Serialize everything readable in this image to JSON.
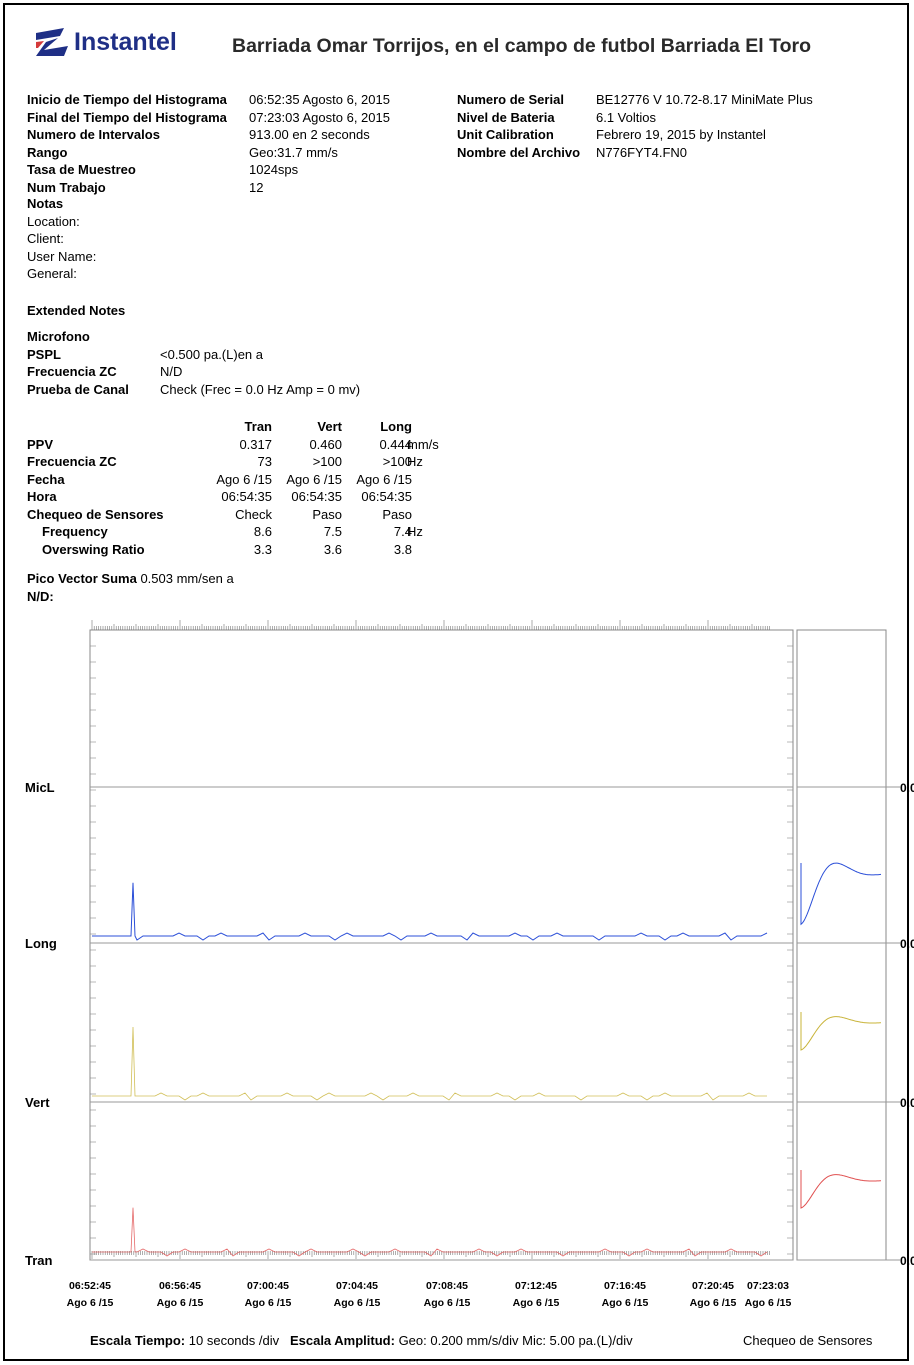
{
  "header": {
    "logo_text": "Instantel",
    "title": "Barriada Omar Torrijos, en el campo de futbol Barriada El Toro"
  },
  "info_left": [
    {
      "label": "Inicio de Tiempo del Histograma",
      "value": "06:52:35 Agosto 6, 2015"
    },
    {
      "label": "Final del Tiempo del Histograma",
      "value": "07:23:03 Agosto 6, 2015"
    },
    {
      "label": "Numero de Intervalos",
      "value": "913.00 en 2 seconds"
    },
    {
      "label": "Rango",
      "value": "Geo:31.7 mm/s"
    },
    {
      "label": "Tasa de Muestreo",
      "value": "1024sps"
    },
    {
      "label": "Num Trabajo",
      "value": "12"
    }
  ],
  "info_right": [
    {
      "label": "Numero de Serial",
      "value": "BE12776 V 10.72-8.17 MiniMate Plus"
    },
    {
      "label": "Nivel de Bateria",
      "value": "6.1 Voltios"
    },
    {
      "label": "Unit Calibration",
      "value": "Febrero 19, 2015 by Instantel"
    },
    {
      "label": "Nombre del Archivo",
      "value": "N776FYT4.FN0"
    }
  ],
  "notes": {
    "title": "Notas",
    "lines": [
      "Location:",
      "Client:",
      "User Name:",
      "General:"
    ],
    "extended_title": "Extended Notes"
  },
  "microfono": {
    "title": "Microfono",
    "rows": [
      {
        "label": "PSPL",
        "value": "<0.500 pa.(L)en  a"
      },
      {
        "label": "Frecuencia ZC",
        "value": "N/D"
      },
      {
        "label": "Prueba de Canal",
        "value": "Check (Frec = 0.0 Hz Amp = 0 mv)"
      }
    ]
  },
  "sensor_table": {
    "columns": [
      "Tran",
      "Vert",
      "Long"
    ],
    "rows": [
      {
        "label": "PPV",
        "values": [
          "0.317",
          "0.460",
          "0.444"
        ],
        "unit": "mm/s",
        "indent": false
      },
      {
        "label": "Frecuencia ZC",
        "values": [
          "73",
          ">100",
          ">100"
        ],
        "unit": "Hz",
        "indent": false
      },
      {
        "label": "Fecha",
        "values": [
          "Ago 6 /15",
          "Ago 6 /15",
          "Ago 6 /15"
        ],
        "unit": "",
        "indent": false
      },
      {
        "label": "Hora",
        "values": [
          "06:54:35",
          "06:54:35",
          "06:54:35"
        ],
        "unit": "",
        "indent": false
      },
      {
        "label": "Chequeo de Sensores",
        "values": [
          "Check",
          "Paso",
          "Paso"
        ],
        "unit": "",
        "indent": false
      },
      {
        "label": "Frequency",
        "values": [
          "8.6",
          "7.5",
          "7.4"
        ],
        "unit": "Hz",
        "indent": true
      },
      {
        "label": "Overswing Ratio",
        "values": [
          "3.3",
          "3.6",
          "3.8"
        ],
        "unit": "",
        "indent": true
      }
    ]
  },
  "pvs": {
    "label": "Pico Vector Suma",
    "value": "0.503 mm/sen  a",
    "nd": "N/D:"
  },
  "chart_data": {
    "type": "line",
    "channels": [
      "MicL",
      "Long",
      "Vert",
      "Tran"
    ],
    "right_edge_labels": [
      "0.0",
      "0.0",
      "0.0",
      "0.0"
    ],
    "colors": {
      "MicL": "#000000",
      "Long": "#2b4fd8",
      "Vert": "#c9b43a",
      "Tran": "#e05050"
    },
    "x_ticks": [
      {
        "time": "06:52:45",
        "date": "Ago 6 /15"
      },
      {
        "time": "06:56:45",
        "date": "Ago 6 /15"
      },
      {
        "time": "07:00:45",
        "date": "Ago 6 /15"
      },
      {
        "time": "07:04:45",
        "date": "Ago 6 /15"
      },
      {
        "time": "07:08:45",
        "date": "Ago 6 /15"
      },
      {
        "time": "07:12:45",
        "date": "Ago 6 /15"
      },
      {
        "time": "07:16:45",
        "date": "Ago 6 /15"
      },
      {
        "time": "07:20:45",
        "date": "Ago 6 /15"
      },
      {
        "time": "07:23:03",
        "date": "Ago 6 /15"
      }
    ],
    "x_range": [
      "06:52:35",
      "07:23:03"
    ],
    "peak_time": "06:54:35",
    "peak_ppv": {
      "Tran": 0.317,
      "Vert": 0.46,
      "Long": 0.444
    },
    "grid": false
  },
  "footer": {
    "time_scale_label": "Escala Tiempo:",
    "time_scale_value": "10 seconds /div",
    "amp_scale_label": "Escala Amplitud:",
    "amp_scale_value": "Geo: 0.200 mm/s/div Mic: 5.00 pa.(L)/div",
    "sensor_check": "Chequeo de Sensores"
  }
}
